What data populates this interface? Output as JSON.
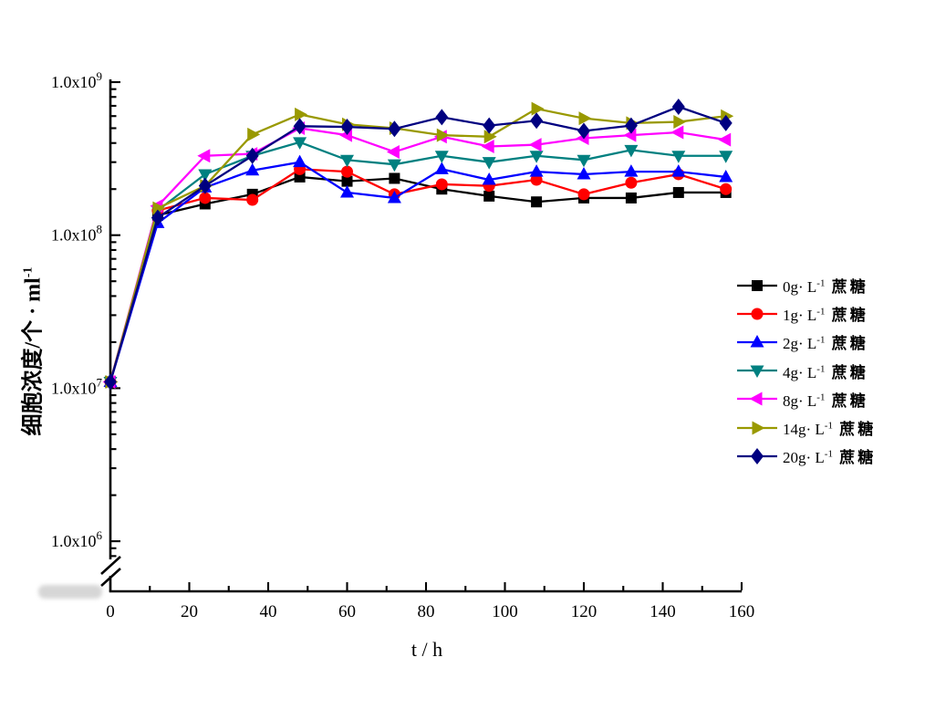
{
  "figure": {
    "background": "#ffffff",
    "x_axis": {
      "title": "t / h",
      "range": [
        0,
        160
      ],
      "major_ticks": [
        0,
        20,
        40,
        60,
        80,
        100,
        120,
        140,
        160
      ],
      "tick_labels": [
        "0",
        "20",
        "40",
        "60",
        "80",
        "100",
        "120",
        "140",
        "160"
      ],
      "minor_tick_step": 10
    },
    "y_axis": {
      "scale": "log",
      "title_main": "细胞浓度/个 · ml",
      "title_sup": "-1",
      "tick_labels": [
        {
          "base": "1.0x10",
          "exp": "9",
          "value": 1000000000.0
        },
        {
          "base": "1.0x10",
          "exp": "8",
          "value": 100000000.0
        },
        {
          "base": "1.0x10",
          "exp": "7",
          "value": 10000000.0
        },
        {
          "base": "1.0x10",
          "exp": "6",
          "value": 1000000.0
        }
      ],
      "axis_break": true
    },
    "legend": {
      "items": [
        {
          "key": "0g",
          "prefix": "0g· L",
          "sup": "-1",
          "suffix": " 蔗糖"
        },
        {
          "key": "1g",
          "prefix": "1g· L",
          "sup": "-1",
          "suffix": " 蔗糖"
        },
        {
          "key": "2g",
          "prefix": "2g· L",
          "sup": "-1",
          "suffix": " 蔗糖"
        },
        {
          "key": "4g",
          "prefix": "4g· L",
          "sup": "-1",
          "suffix": " 蔗糖"
        },
        {
          "key": "8g",
          "prefix": "8g· L",
          "sup": "-1",
          "suffix": " 蔗糖"
        },
        {
          "key": "14g",
          "prefix": "14g· L",
          "sup": "-1",
          "suffix": " 蔗糖"
        },
        {
          "key": "20g",
          "prefix": "20g· L",
          "sup": "-1",
          "suffix": " 蔗糖"
        }
      ]
    }
  },
  "chart_data": {
    "type": "line",
    "title": "",
    "xlabel": "t / h",
    "ylabel": "细胞浓度/个·ml-1",
    "x_range": [
      0,
      160
    ],
    "y_scale": "log",
    "y_range_displayed": [
      1000000.0,
      1000000000.0
    ],
    "grid": false,
    "legend_position": "right",
    "x": [
      0,
      12,
      24,
      36,
      48,
      60,
      72,
      84,
      96,
      108,
      120,
      132,
      144,
      156
    ],
    "series": [
      {
        "key": "0g",
        "name": "0g·L-1 蔗糖",
        "color": "#000000",
        "marker": "square",
        "values": [
          11000000.0,
          135000000.0,
          160000000.0,
          185000000.0,
          240000000.0,
          225000000.0,
          235000000.0,
          200000000.0,
          180000000.0,
          165000000.0,
          175000000.0,
          175000000.0,
          190000000.0,
          190000000.0
        ]
      },
      {
        "key": "1g",
        "name": "1g·L-1 蔗糖",
        "color": "#ff0000",
        "marker": "circle",
        "values": [
          11000000.0,
          145000000.0,
          175000000.0,
          170000000.0,
          270000000.0,
          260000000.0,
          185000000.0,
          215000000.0,
          210000000.0,
          230000000.0,
          185000000.0,
          220000000.0,
          250000000.0,
          200000000.0
        ]
      },
      {
        "key": "2g",
        "name": "2g·L-1 蔗糖",
        "color": "#0000ff",
        "marker": "triangle-up",
        "values": [
          11000000.0,
          120000000.0,
          205000000.0,
          265000000.0,
          300000000.0,
          190000000.0,
          175000000.0,
          270000000.0,
          230000000.0,
          260000000.0,
          250000000.0,
          260000000.0,
          260000000.0,
          240000000.0
        ]
      },
      {
        "key": "4g",
        "name": "4g·L-1 蔗糖",
        "color": "#008080",
        "marker": "triangle-down",
        "values": [
          11000000.0,
          145000000.0,
          250000000.0,
          330000000.0,
          405000000.0,
          310000000.0,
          290000000.0,
          330000000.0,
          300000000.0,
          330000000.0,
          310000000.0,
          360000000.0,
          330000000.0,
          330000000.0
        ]
      },
      {
        "key": "8g",
        "name": "8g·L-1 蔗糖",
        "color": "#ff00ff",
        "marker": "triangle-left",
        "values": [
          11000000.0,
          155000000.0,
          330000000.0,
          340000000.0,
          500000000.0,
          450000000.0,
          350000000.0,
          440000000.0,
          380000000.0,
          390000000.0,
          430000000.0,
          450000000.0,
          470000000.0,
          420000000.0
        ]
      },
      {
        "key": "14g",
        "name": "14g·L-1 蔗糖",
        "color": "#999900",
        "marker": "triangle-right",
        "values": [
          11000000.0,
          150000000.0,
          210000000.0,
          455000000.0,
          615000000.0,
          530000000.0,
          500000000.0,
          450000000.0,
          440000000.0,
          670000000.0,
          580000000.0,
          540000000.0,
          550000000.0,
          600000000.0
        ]
      },
      {
        "key": "20g",
        "name": "20g·L-1 蔗糖",
        "color": "#000080",
        "marker": "diamond",
        "values": [
          11000000.0,
          130000000.0,
          210000000.0,
          330000000.0,
          515000000.0,
          510000000.0,
          495000000.0,
          590000000.0,
          520000000.0,
          560000000.0,
          480000000.0,
          520000000.0,
          690000000.0,
          540000000.0
        ]
      }
    ]
  }
}
